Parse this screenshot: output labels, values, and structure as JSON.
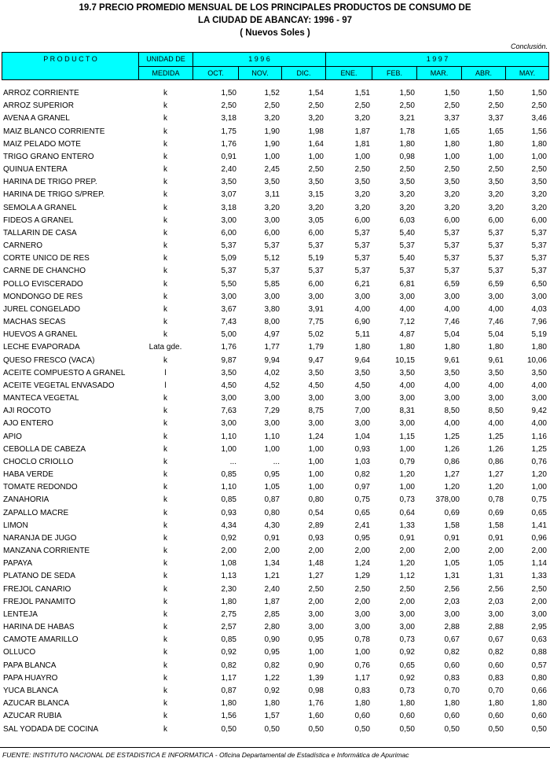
{
  "header": {
    "title_line1": "19.7  PRECIO PROMEDIO MENSUAL DE LOS PRINCIPALES PRODUCTOS DE CONSUMO  DE",
    "title_line2": "LA CIUDAD DE ABANCAY: 1996 - 97",
    "subtitle": "( Nuevos Soles )",
    "note": "Conclusión."
  },
  "table": {
    "columns": {
      "product": "P R O D U C T O",
      "unit_line1": "UNIDAD DE",
      "unit_line2": "MEDIDA",
      "year1": "1 9 9 6",
      "year2": "1 9 9 7",
      "months": [
        "OCT.",
        "NOV.",
        "DIC.",
        "ENE.",
        "FEB.",
        "MAR.",
        "ABR.",
        "MAY."
      ]
    },
    "rows": [
      [
        "ARROZ CORRIENTE",
        "k",
        "1,50",
        "1,52",
        "1,54",
        "1,51",
        "1,50",
        "1,50",
        "1,50",
        "1,50"
      ],
      [
        "ARROZ SUPERIOR",
        "k",
        "2,50",
        "2,50",
        "2,50",
        "2,50",
        "2,50",
        "2,50",
        "2,50",
        "2,50"
      ],
      [
        "AVENA A GRANEL",
        "k",
        "3,18",
        "3,20",
        "3,20",
        "3,20",
        "3,21",
        "3,37",
        "3,37",
        "3,46"
      ],
      [
        "MAIZ BLANCO CORRIENTE",
        "k",
        "1,75",
        "1,90",
        "1,98",
        "1,87",
        "1,78",
        "1,65",
        "1,65",
        "1,56"
      ],
      [
        "MAIZ PELADO MOTE",
        "k",
        "1,76",
        "1,90",
        "1,64",
        "1,81",
        "1,80",
        "1,80",
        "1,80",
        "1,80"
      ],
      [
        "TRIGO GRANO ENTERO",
        "k",
        "0,91",
        "1,00",
        "1,00",
        "1,00",
        "0,98",
        "1,00",
        "1,00",
        "1,00"
      ],
      [
        "QUINUA ENTERA",
        "k",
        "2,40",
        "2,45",
        "2,50",
        "2,50",
        "2,50",
        "2,50",
        "2,50",
        "2,50"
      ],
      [
        "HARINA DE TRIGO PREP.",
        "k",
        "3,50",
        "3,50",
        "3,50",
        "3,50",
        "3,50",
        "3,50",
        "3,50",
        "3,50"
      ],
      [
        "HARINA DE TRIGO S/PREP.",
        "k",
        "3,07",
        "3,11",
        "3,15",
        "3,20",
        "3,20",
        "3,20",
        "3,20",
        "3,20"
      ],
      [
        "SEMOLA A GRANEL",
        "k",
        "3,18",
        "3,20",
        "3,20",
        "3,20",
        "3,20",
        "3,20",
        "3,20",
        "3,20"
      ],
      [
        "FIDEOS A GRANEL",
        "k",
        "3,00",
        "3,00",
        "3,05",
        "6,00",
        "6,03",
        "6,00",
        "6,00",
        "6,00"
      ],
      [
        "TALLARIN DE CASA",
        "k",
        "6,00",
        "6,00",
        "6,00",
        "5,37",
        "5,40",
        "5,37",
        "5,37",
        "5,37"
      ],
      [
        "CARNERO",
        "k",
        "5,37",
        "5,37",
        "5,37",
        "5,37",
        "5,37",
        "5,37",
        "5,37",
        "5,37"
      ],
      [
        "CORTE UNICO DE RES",
        "k",
        "5,09",
        "5,12",
        "5,19",
        "5,37",
        "5,40",
        "5,37",
        "5,37",
        "5,37"
      ],
      [
        "CARNE DE CHANCHO",
        "k",
        "5,37",
        "5,37",
        "5,37",
        "5,37",
        "5,37",
        "5,37",
        "5,37",
        "5,37"
      ],
      [
        "POLLO EVISCERADO",
        "k",
        "5,50",
        "5,85",
        "6,00",
        "6,21",
        "6,81",
        "6,59",
        "6,59",
        "6,50"
      ],
      [
        "MONDONGO DE RES",
        "k",
        "3,00",
        "3,00",
        "3,00",
        "3,00",
        "3,00",
        "3,00",
        "3,00",
        "3,00"
      ],
      [
        "JUREL CONGELADO",
        "k",
        "3,67",
        "3,80",
        "3,91",
        "4,00",
        "4,00",
        "4,00",
        "4,00",
        "4,03"
      ],
      [
        "MACHAS SECAS",
        "k",
        "7,43",
        "8,00",
        "7,75",
        "6,90",
        "7,12",
        "7,46",
        "7,46",
        "7,96"
      ],
      [
        "HUEVOS A GRANEL",
        "k",
        "5,00",
        "4,97",
        "5,02",
        "5,11",
        "4,87",
        "5,04",
        "5,04",
        "5,19"
      ],
      [
        "LECHE EVAPORADA",
        "Lata gde.",
        "1,76",
        "1,77",
        "1,79",
        "1,80",
        "1,80",
        "1,80",
        "1,80",
        "1,80"
      ],
      [
        "QUESO FRESCO (VACA)",
        "k",
        "9,87",
        "9,94",
        "9,47",
        "9,64",
        "10,15",
        "9,61",
        "9,61",
        "10,06"
      ],
      [
        "ACEITE COMPUESTO A GRANEL",
        "l",
        "3,50",
        "4,02",
        "3,50",
        "3,50",
        "3,50",
        "3,50",
        "3,50",
        "3,50"
      ],
      [
        "ACEITE VEGETAL ENVASADO",
        "l",
        "4,50",
        "4,52",
        "4,50",
        "4,50",
        "4,00",
        "4,00",
        "4,00",
        "4,00"
      ],
      [
        "MANTECA VEGETAL",
        "k",
        "3,00",
        "3,00",
        "3,00",
        "3,00",
        "3,00",
        "3,00",
        "3,00",
        "3,00"
      ],
      [
        "AJI ROCOTO",
        "k",
        "7,63",
        "7,29",
        "8,75",
        "7,00",
        "8,31",
        "8,50",
        "8,50",
        "9,42"
      ],
      [
        "AJO ENTERO",
        "k",
        "3,00",
        "3,00",
        "3,00",
        "3,00",
        "3,00",
        "4,00",
        "4,00",
        "4,00"
      ],
      [
        "APIO",
        "k",
        "1,10",
        "1,10",
        "1,24",
        "1,04",
        "1,15",
        "1,25",
        "1,25",
        "1,16"
      ],
      [
        "CEBOLLA DE CABEZA",
        "k",
        "1,00",
        "1,00",
        "1,00",
        "0,93",
        "1,00",
        "1,26",
        "1,26",
        "1,25"
      ],
      [
        "CHOCLO CRIOLLO",
        "k",
        "...",
        "...",
        "1,00",
        "1,03",
        "0,79",
        "0,86",
        "0,86",
        "0,76"
      ],
      [
        "HABA VERDE",
        "k",
        "0,85",
        "0,95",
        "1,00",
        "0,82",
        "1,20",
        "1,27",
        "1,27",
        "1,20"
      ],
      [
        "TOMATE REDONDO",
        "k",
        "1,10",
        "1,05",
        "1,00",
        "0,97",
        "1,00",
        "1,20",
        "1,20",
        "1,00"
      ],
      [
        "ZANAHORIA",
        "k",
        "0,85",
        "0,87",
        "0,80",
        "0,75",
        "0,73",
        "378,00",
        "0,78",
        "0,75"
      ],
      [
        "ZAPALLO MACRE",
        "k",
        "0,93",
        "0,80",
        "0,54",
        "0,65",
        "0,64",
        "0,69",
        "0,69",
        "0,65"
      ],
      [
        "LIMON",
        "k",
        "4,34",
        "4,30",
        "2,89",
        "2,41",
        "1,33",
        "1,58",
        "1,58",
        "1,41"
      ],
      [
        "NARANJA DE JUGO",
        "k",
        "0,92",
        "0,91",
        "0,93",
        "0,95",
        "0,91",
        "0,91",
        "0,91",
        "0,96"
      ],
      [
        "MANZANA CORRIENTE",
        "k",
        "2,00",
        "2,00",
        "2,00",
        "2,00",
        "2,00",
        "2,00",
        "2,00",
        "2,00"
      ],
      [
        "PAPAYA",
        "k",
        "1,08",
        "1,34",
        "1,48",
        "1,24",
        "1,20",
        "1,05",
        "1,05",
        "1,14"
      ],
      [
        "PLATANO DE SEDA",
        "k",
        "1,13",
        "1,21",
        "1,27",
        "1,29",
        "1,12",
        "1,31",
        "1,31",
        "1,33"
      ],
      [
        "FREJOL CANARIO",
        "k",
        "2,30",
        "2,40",
        "2,50",
        "2,50",
        "2,50",
        "2,56",
        "2,56",
        "2,50"
      ],
      [
        "FREJOL PANAMITO",
        "k",
        "1,80",
        "1,87",
        "2,00",
        "2,00",
        "2,00",
        "2,03",
        "2,03",
        "2,00"
      ],
      [
        "LENTEJA",
        "k",
        "2,75",
        "2,85",
        "3,00",
        "3,00",
        "3,00",
        "3,00",
        "3,00",
        "3,00"
      ],
      [
        "HARINA DE HABAS",
        "k",
        "2,57",
        "2,80",
        "3,00",
        "3,00",
        "3,00",
        "2,88",
        "2,88",
        "2,95"
      ],
      [
        "CAMOTE AMARILLO",
        "k",
        "0,85",
        "0,90",
        "0,95",
        "0,78",
        "0,73",
        "0,67",
        "0,67",
        "0,63"
      ],
      [
        "OLLUCO",
        "k",
        "0,92",
        "0,95",
        "1,00",
        "1,00",
        "0,92",
        "0,82",
        "0,82",
        "0,88"
      ],
      [
        "PAPA BLANCA",
        "k",
        "0,82",
        "0,82",
        "0,90",
        "0,76",
        "0,65",
        "0,60",
        "0,60",
        "0,57"
      ],
      [
        "PAPA HUAYRO",
        "k",
        "1,17",
        "1,22",
        "1,39",
        "1,17",
        "0,92",
        "0,83",
        "0,83",
        "0,80"
      ],
      [
        "YUCA BLANCA",
        "k",
        "0,87",
        "0,92",
        "0,98",
        "0,83",
        "0,73",
        "0,70",
        "0,70",
        "0,66"
      ],
      [
        "AZUCAR BLANCA",
        "k",
        "1,80",
        "1,80",
        "1,76",
        "1,80",
        "1,80",
        "1,80",
        "1,80",
        "1,80"
      ],
      [
        "AZUCAR RUBIA",
        "k",
        "1,56",
        "1,57",
        "1,60",
        "0,60",
        "0,60",
        "0,60",
        "0,60",
        "0,60"
      ],
      [
        "SAL YODADA DE COCINA",
        "k",
        "0,50",
        "0,50",
        "0,50",
        "0,50",
        "0,50",
        "0,50",
        "0,50",
        "0,50"
      ]
    ]
  },
  "footer": {
    "source": "FUENTE: INSTITUTO NACIONAL DE ESTADISTICA E INFORMATICA - Oficina Departamental de Estadística e Informática de Apurimac"
  }
}
